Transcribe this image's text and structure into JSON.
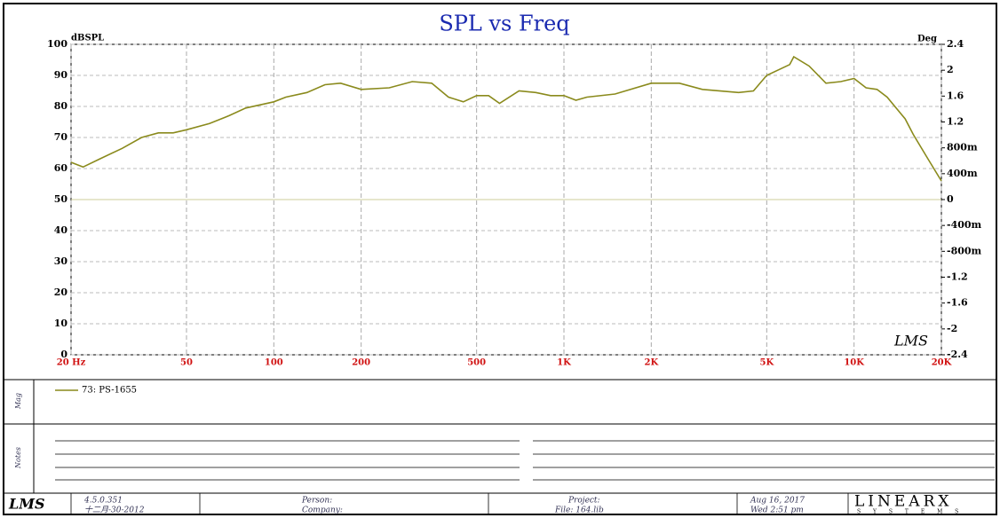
{
  "chart_data": {
    "type": "line",
    "title": "SPL vs Freq",
    "y_label": "dBSPL",
    "y2_label": "Deg",
    "x_log": true,
    "grid": true,
    "xlim": [
      20,
      20000
    ],
    "xticks": [
      {
        "value": 20,
        "label": "20 Hz"
      },
      50,
      100,
      200,
      500,
      {
        "value": 1000,
        "label": "1K"
      },
      {
        "value": 2000,
        "label": "2K"
      },
      {
        "value": 5000,
        "label": "5K"
      },
      {
        "value": 10000,
        "label": "10K"
      },
      {
        "value": 20000,
        "label": "20K"
      }
    ],
    "ylim": [
      0,
      100
    ],
    "yticks": [
      0,
      10,
      20,
      30,
      40,
      50,
      60,
      70,
      80,
      90,
      100
    ],
    "y2lim": [
      -2.4,
      2.4
    ],
    "y2ticks": [
      -2.4,
      -2,
      -1.6,
      -1.2,
      {
        "value": -0.8,
        "label": "-800m"
      },
      {
        "value": -0.4,
        "label": "-400m"
      },
      0,
      {
        "value": 0.4,
        "label": "400m"
      },
      {
        "value": 0.8,
        "label": "800m"
      },
      1.2,
      1.6,
      2,
      2.4
    ],
    "x": [
      20,
      22,
      25,
      30,
      35,
      40,
      45,
      50,
      60,
      70,
      80,
      100,
      110,
      130,
      150,
      170,
      200,
      250,
      300,
      350,
      400,
      450,
      500,
      550,
      600,
      700,
      800,
      900,
      1000,
      1100,
      1200,
      1500,
      2000,
      2500,
      3000,
      4000,
      4500,
      5000,
      6000,
      6200,
      7000,
      8000,
      9000,
      10000,
      11000,
      12000,
      13000,
      15000,
      16000,
      18000,
      20000
    ],
    "series": [
      {
        "name": "73: PS-1655",
        "color": "#8a8a1c",
        "values": [
          62,
          60.5,
          63,
          66.5,
          70,
          71.5,
          71.5,
          72.5,
          74.5,
          77,
          79.5,
          81.5,
          83,
          84.5,
          87,
          87.5,
          85.5,
          86,
          88,
          87.5,
          83,
          81.5,
          83.5,
          83.5,
          81,
          85,
          84.5,
          83.5,
          83.5,
          82,
          83,
          84,
          87.5,
          87.5,
          85.5,
          84.5,
          85,
          90,
          93.5,
          96,
          93,
          87.5,
          88,
          89,
          86,
          85.5,
          83,
          76,
          71,
          63,
          56
        ]
      }
    ],
    "stamp": "LMS"
  },
  "panel": {
    "mag_label": "Mag",
    "notes_label": "Notes",
    "version": "4.5.0.351",
    "version_date": "十二月-30-2012",
    "person": "Person:",
    "company": "Company:",
    "project": "Project:",
    "file": "File: 164.lib",
    "date": "Aug 16, 2017",
    "time": "Wed  2:51 pm",
    "brand": "LINEARX",
    "brand_sub": "S Y S T E M S",
    "logo": "LMS"
  }
}
